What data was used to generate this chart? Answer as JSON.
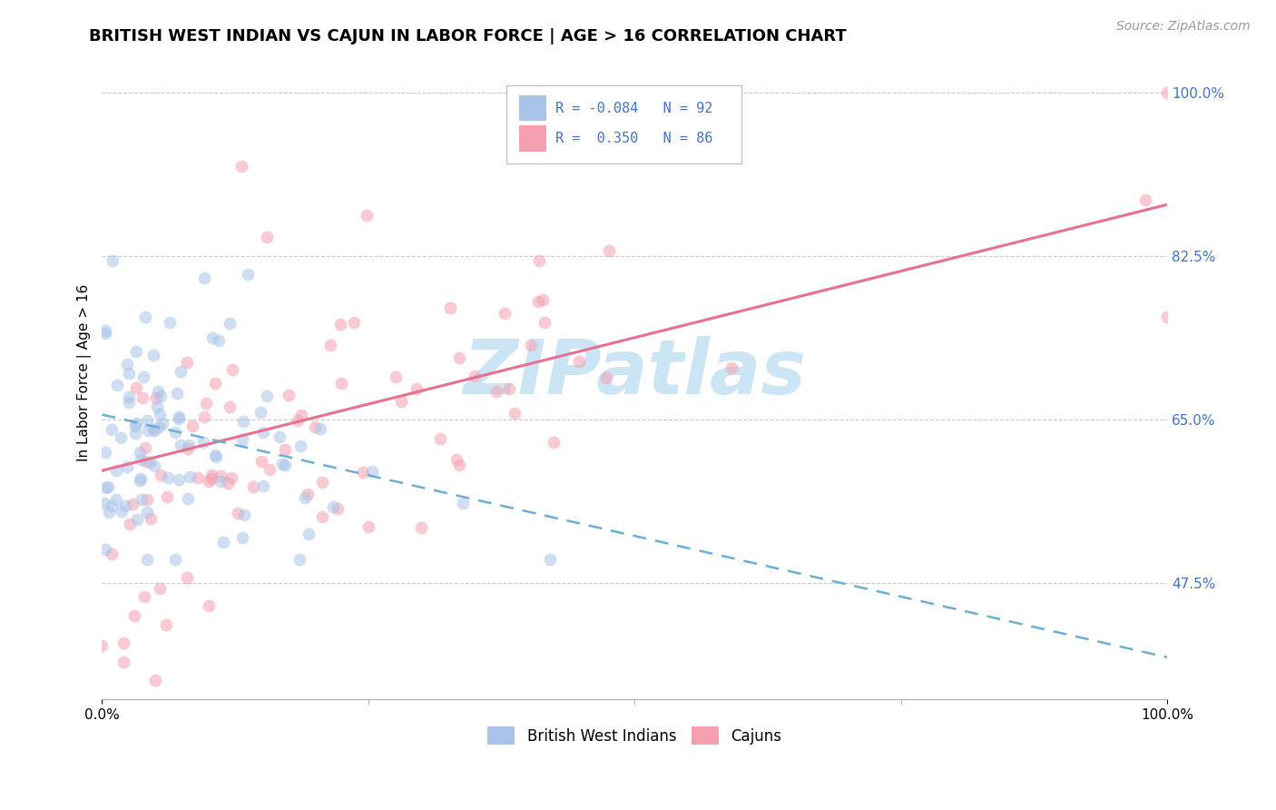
{
  "title": "BRITISH WEST INDIAN VS CAJUN IN LABOR FORCE | AGE > 16 CORRELATION CHART",
  "source_text": "Source: ZipAtlas.com",
  "ylabel": "In Labor Force | Age > 16",
  "xlim": [
    0.0,
    1.0
  ],
  "ylim": [
    0.35,
    1.05
  ],
  "x_tick_labels": [
    "0.0%",
    "100.0%"
  ],
  "y_tick_labels": [
    "47.5%",
    "65.0%",
    "82.5%",
    "100.0%"
  ],
  "y_tick_positions": [
    0.475,
    0.65,
    0.825,
    1.0
  ],
  "legend_r_values": [
    "-0.084",
    "0.350"
  ],
  "legend_n_values": [
    "92",
    "86"
  ],
  "bwi_color": "#aac4e8",
  "cajun_color": "#f4a0b0",
  "trendline_bwi_color": "#6baed6",
  "trendline_cajun_color": "#e87090",
  "trendline_bwi_intercept": 0.655,
  "trendline_bwi_slope": -0.26,
  "trendline_cajun_intercept": 0.595,
  "trendline_cajun_slope": 0.285,
  "watermark": "ZIPatlas",
  "watermark_color": "#cce5f5",
  "grid_color": "#cccccc",
  "background_color": "#ffffff",
  "title_fontsize": 13,
  "axis_label_fontsize": 11,
  "tick_label_color_y": "#4472c4",
  "legend_fontsize": 11,
  "bottom_legend": [
    "British West Indians",
    "Cajuns"
  ],
  "scatter_alpha": 0.55,
  "scatter_size": 100,
  "bwi_seed": 7,
  "cajun_seed": 13
}
